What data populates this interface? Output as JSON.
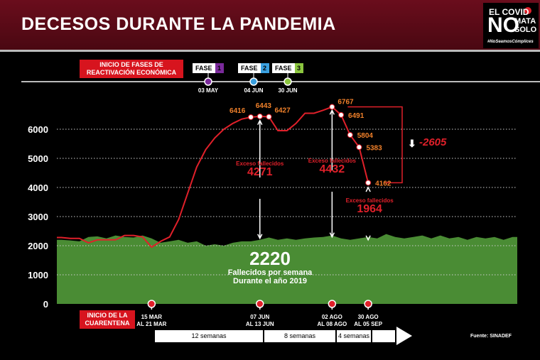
{
  "header": {
    "title": "DECESOS DURANTE LA PANDEMIA"
  },
  "logo": {
    "line1": "EL COVID",
    "no": "NO",
    "mata": "MATA",
    "solo": "SOLO",
    "hashtag": "#NoSeamosCómplices"
  },
  "phases": {
    "label": "INICIO DE FASES DE REACTIVACIÓN ECONÓMICA",
    "items": [
      {
        "text": "FASE",
        "num": "1",
        "date": "03 MAY",
        "color": "#7b2a9c"
      },
      {
        "text": "FASE",
        "num": "2",
        "date": "04 JUN",
        "color": "#3aa0e0"
      },
      {
        "text": "FASE",
        "num": "3",
        "date": "30 JUN",
        "color": "#8cc63f"
      }
    ]
  },
  "quarantine": {
    "label": "INICIO DE LA CUARENTENA",
    "markers": [
      "15 MAR AL 21 MAR",
      "07 JUN AL 13 JUN",
      "02 AGO AL 08 AGO",
      "30 AGO AL 05 SEP"
    ],
    "segments": [
      "12 semanas",
      "8 semanas",
      "4 semanas"
    ]
  },
  "source": "Fuente: SINADEF",
  "baseline": {
    "value": "2220",
    "line1": "Fallecidos por semana",
    "line2": "Durante el año 2019"
  },
  "excess": [
    {
      "label": "Exceso fallecidos",
      "value": "4271"
    },
    {
      "label": "Exceso fallecidos",
      "value": "4432"
    },
    {
      "label": "Exceso fallecidos",
      "value": "1964"
    }
  ],
  "drop": "-2605",
  "chart_data": {
    "type": "area",
    "xlabel": "",
    "ylabel": "",
    "yticks": [
      "0",
      "1000",
      "2000",
      "3000",
      "4000",
      "5000",
      "6000"
    ],
    "ylim": [
      0,
      7000
    ],
    "grid": true,
    "colors": {
      "2020": "#e0202a",
      "2019": "#4a8c34"
    },
    "series": [
      {
        "x": [
          1,
          2,
          3,
          4,
          5,
          6,
          7,
          8,
          9,
          10,
          11,
          12,
          13,
          14,
          15,
          16,
          17,
          18,
          19,
          20,
          21,
          22,
          23,
          24,
          25,
          26,
          27,
          28,
          29,
          30,
          31,
          32,
          33,
          34,
          35
        ],
        "values": [
          2280,
          2250,
          2250,
          2100,
          2200,
          2200,
          2200,
          2350,
          2350,
          2300,
          1950,
          2150,
          2300,
          2900,
          3800,
          4700,
          5300,
          5700,
          6000,
          6200,
          6350,
          6416,
          6443,
          6427,
          5950,
          5950,
          6200,
          6550,
          6550,
          6650,
          6767,
          6491,
          5804,
          5383,
          4162
        ],
        "labeled": [
          22,
          23,
          24,
          31,
          32,
          33,
          34,
          35
        ]
      },
      {
        "x": [
          1,
          2,
          3,
          4,
          5,
          6,
          7,
          8,
          9,
          10,
          11,
          12,
          13,
          14,
          15,
          16,
          17,
          18,
          19,
          20,
          21,
          22,
          23,
          24,
          25,
          26,
          27,
          28,
          29,
          30,
          31,
          32,
          33,
          34,
          35,
          36,
          37,
          38,
          39,
          40,
          41,
          42,
          43,
          44,
          45,
          46,
          47,
          48,
          49,
          50,
          51
        ],
        "values": [
          2200,
          2180,
          2150,
          2300,
          2320,
          2250,
          2350,
          2300,
          2280,
          2350,
          2250,
          2100,
          2150,
          2200,
          2100,
          2150,
          2000,
          2050,
          2000,
          2100,
          2150,
          2150,
          2200,
          2280,
          2200,
          2250,
          2200,
          2250,
          2280,
          2300,
          2350,
          2250,
          2200,
          2250,
          2300,
          2250,
          2400,
          2300,
          2250,
          2300,
          2350,
          2250,
          2350,
          2250,
          2300,
          2200,
          2300,
          2250,
          2300,
          2200,
          2300
        ]
      }
    ]
  }
}
